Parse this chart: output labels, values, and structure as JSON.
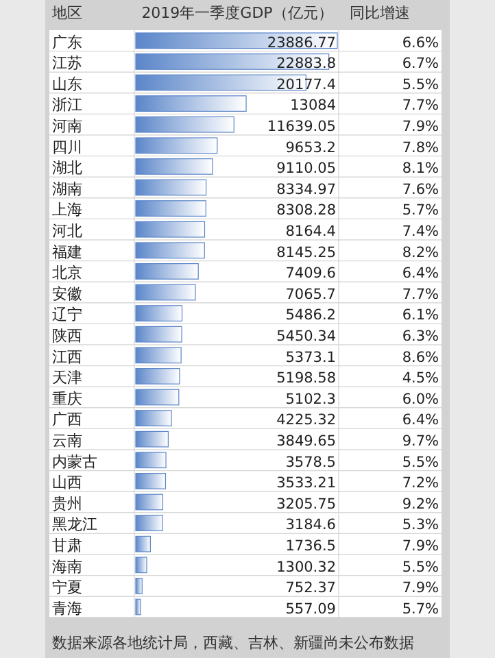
{
  "chart_data": [
    {
      "type": "bar",
      "orientation": "horizontal",
      "title": "2019年一季度GDP（亿元）",
      "ylabel": "地区",
      "color": "#5b86c9",
      "data_labels": true,
      "xlim": [
        0,
        23886.77
      ],
      "tick_labels": "y",
      "categories": [
        "广东",
        "江苏",
        "山东",
        "浙江",
        "河南",
        "四川",
        "湖北",
        "湖南",
        "上海",
        "河北",
        "福建",
        "北京",
        "安徽",
        "辽宁",
        "陕西",
        "江西",
        "天津",
        "重庆",
        "广西",
        "云南",
        "内蒙古",
        "山西",
        "贵州",
        "黑龙江",
        "甘肃",
        "海南",
        "宁夏",
        "青海"
      ],
      "values": [
        23886.77,
        22883.8,
        20177.4,
        13084,
        11639.05,
        9653.2,
        9110.05,
        8334.97,
        8308.28,
        8164.4,
        8145.25,
        7409.6,
        7065.7,
        5486.2,
        5450.34,
        5373.1,
        5198.58,
        5102.3,
        4225.32,
        3849.65,
        3578.5,
        3533.21,
        3205.75,
        3184.6,
        1736.5,
        1300.32,
        752.37,
        557.09
      ],
      "annotations": [
        "数据来源各地统计局，西藏、吉林、新疆尚未公布数据"
      ]
    },
    {
      "type": "other",
      "title": "同比增速",
      "value_labels": [
        "6.6%",
        "6.7%",
        "5.5%",
        "7.7%",
        "7.9%",
        "7.8%",
        "8.1%",
        "7.6%",
        "5.7%",
        "7.4%",
        "8.2%",
        "6.4%",
        "7.7%",
        "6.1%",
        "6.3%",
        "8.6%",
        "4.5%",
        "6.0%",
        "6.4%",
        "9.7%",
        "5.5%",
        "7.2%",
        "9.2%",
        "5.3%",
        "7.9%",
        "5.5%",
        "7.9%",
        "5.7%"
      ]
    }
  ]
}
